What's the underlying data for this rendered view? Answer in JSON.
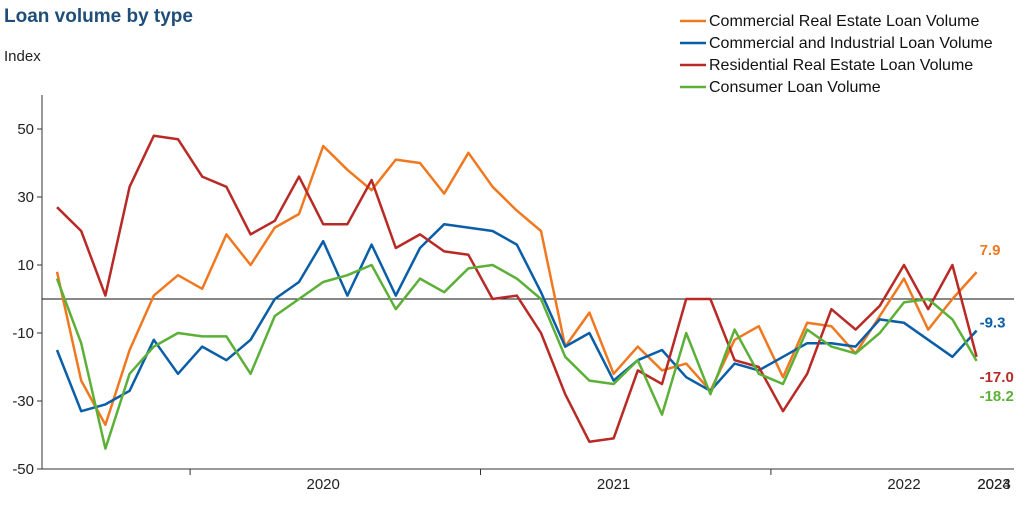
{
  "title": "Loan volume by type",
  "chart_data": {
    "type": "line",
    "title": "Loan volume by type",
    "ylabel": "Index",
    "xlabel": "",
    "ylim": [
      -50,
      60
    ],
    "yticks": [
      -50,
      -30,
      -10,
      10,
      30,
      50
    ],
    "x_tick_labels": [
      "2020",
      "2021",
      "2022",
      "2023",
      "2024"
    ],
    "x_start": "2019-07",
    "x_end": "2024-08",
    "zero_line": true,
    "grid": false,
    "legend_position": "top-right",
    "series": [
      {
        "name": "Commercial Real Estate Loan Volume",
        "color": "#f07820",
        "end_label": "7.9",
        "values": [
          8,
          -24,
          -37,
          -15,
          1,
          7,
          3,
          19,
          10,
          21,
          25,
          45,
          38,
          32,
          41,
          40,
          31,
          43,
          33,
          26,
          20,
          -14,
          -4,
          -22,
          -14,
          -21,
          -19,
          -27,
          -12,
          -8,
          -23,
          -7,
          -8,
          -16,
          -5,
          6,
          -9,
          0,
          7.9
        ]
      },
      {
        "name": "Commercial and Industrial Loan Volume",
        "color": "#0a5ea8",
        "end_label": "-9.3",
        "values": [
          -15,
          -33,
          -31,
          -27,
          -12,
          -22,
          -14,
          -18,
          -12,
          0,
          5,
          17,
          1,
          16,
          1,
          15,
          22,
          21,
          20,
          16,
          2,
          -14,
          -10,
          -24,
          -18,
          -15,
          -23,
          -27,
          -19,
          -21,
          -17,
          -13,
          -13,
          -14,
          -6,
          -7,
          -12,
          -17,
          -9.3
        ]
      },
      {
        "name": "Residential Real Estate Loan Volume",
        "color": "#b82a25",
        "end_label": "-17.0",
        "values": [
          27,
          20,
          1,
          33,
          48,
          47,
          36,
          33,
          19,
          23,
          36,
          22,
          22,
          35,
          15,
          19,
          14,
          13,
          0,
          1,
          -10,
          -28,
          -42,
          -41,
          -21,
          -25,
          0,
          0,
          -18,
          -20,
          -33,
          -22,
          -3,
          -9,
          -2,
          10,
          -3,
          10,
          -17.0
        ]
      },
      {
        "name": "Consumer Loan Volume",
        "color": "#5cb038",
        "end_label": "-18.2",
        "values": [
          6,
          -13,
          -44,
          -22,
          -14,
          -10,
          -11,
          -11,
          -22,
          -5,
          0,
          5,
          7,
          10,
          -3,
          6,
          2,
          9,
          10,
          6,
          0,
          -17,
          -24,
          -25,
          -18,
          -34,
          -10,
          -28,
          -9,
          -22,
          -25,
          -9,
          -14,
          -16,
          -10,
          -1,
          0,
          -6,
          -18.2
        ]
      }
    ]
  }
}
